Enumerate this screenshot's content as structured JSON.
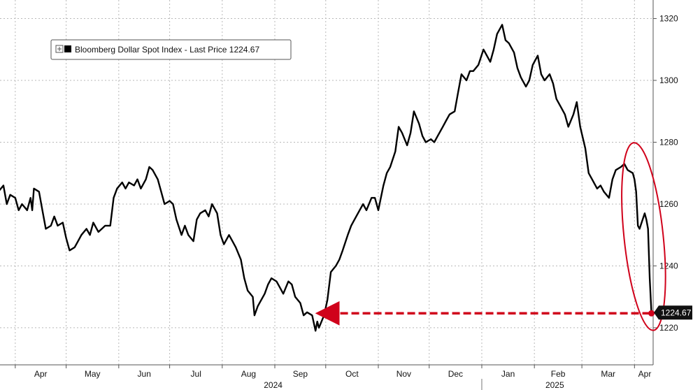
{
  "chart_data": {
    "type": "line",
    "legend": {
      "label": "Bloomberg Dollar Spot Index - Last Price 1224.67",
      "placement": "top-left"
    },
    "last_price_label": "1224.67",
    "colors": {
      "series": "#000000",
      "annotation": "#d0021b",
      "grid": "#b9b9b9"
    },
    "grid": true,
    "y_axis_side": "right",
    "ylim": [
      1208,
      1326
    ],
    "y_ticks": [
      {
        "value": 1220,
        "label": "1220"
      },
      {
        "value": 1240,
        "label": "1240"
      },
      {
        "value": 1260,
        "label": "1260"
      },
      {
        "value": 1280,
        "label": "1280"
      },
      {
        "value": 1300,
        "label": "1300"
      },
      {
        "value": 1320,
        "label": "1320"
      }
    ],
    "xlim": [
      "2024-03-23",
      "2025-04-12"
    ],
    "x_ticks": [
      {
        "date": "2024-04-01",
        "label": "Apr"
      },
      {
        "date": "2024-05-01",
        "label": "May"
      },
      {
        "date": "2024-06-01",
        "label": "Jun"
      },
      {
        "date": "2024-07-01",
        "label": "Jul"
      },
      {
        "date": "2024-08-01",
        "label": "Aug"
      },
      {
        "date": "2024-09-01",
        "label": "Sep"
      },
      {
        "date": "2024-10-01",
        "label": "Oct"
      },
      {
        "date": "2024-11-01",
        "label": "Nov"
      },
      {
        "date": "2024-12-01",
        "label": "Dec"
      },
      {
        "date": "2025-01-01",
        "label": "Jan"
      },
      {
        "date": "2025-02-01",
        "label": "Feb"
      },
      {
        "date": "2025-03-01",
        "label": "Mar"
      },
      {
        "date": "2025-04-01",
        "label": "Apr"
      }
    ],
    "year_labels": [
      {
        "date": "2024-08-31",
        "label": "2024"
      },
      {
        "date": "2025-02-13",
        "label": "2025"
      }
    ],
    "year_divider_date": "2025-01-01",
    "series": [
      {
        "name": "Bloomberg Dollar Spot Index",
        "points": [
          [
            "2024-03-22",
            1264
          ],
          [
            "2024-03-25",
            1266
          ],
          [
            "2024-03-27",
            1260
          ],
          [
            "2024-03-29",
            1263
          ],
          [
            "2024-04-01",
            1262
          ],
          [
            "2024-04-03",
            1258
          ],
          [
            "2024-04-05",
            1260
          ],
          [
            "2024-04-08",
            1258
          ],
          [
            "2024-04-10",
            1262
          ],
          [
            "2024-04-11",
            1258
          ],
          [
            "2024-04-12",
            1265
          ],
          [
            "2024-04-15",
            1264
          ],
          [
            "2024-04-17",
            1258
          ],
          [
            "2024-04-19",
            1252
          ],
          [
            "2024-04-22",
            1253
          ],
          [
            "2024-04-24",
            1256
          ],
          [
            "2024-04-26",
            1253
          ],
          [
            "2024-04-29",
            1254
          ],
          [
            "2024-05-01",
            1249
          ],
          [
            "2024-05-03",
            1245
          ],
          [
            "2024-05-06",
            1246
          ],
          [
            "2024-05-08",
            1248
          ],
          [
            "2024-05-10",
            1250
          ],
          [
            "2024-05-13",
            1252
          ],
          [
            "2024-05-15",
            1250
          ],
          [
            "2024-05-17",
            1254
          ],
          [
            "2024-05-20",
            1251
          ],
          [
            "2024-05-22",
            1252
          ],
          [
            "2024-05-24",
            1253
          ],
          [
            "2024-05-27",
            1253
          ],
          [
            "2024-05-29",
            1262
          ],
          [
            "2024-05-31",
            1265
          ],
          [
            "2024-06-03",
            1267
          ],
          [
            "2024-06-05",
            1265
          ],
          [
            "2024-06-07",
            1267
          ],
          [
            "2024-06-10",
            1266
          ],
          [
            "2024-06-12",
            1268
          ],
          [
            "2024-06-14",
            1265
          ],
          [
            "2024-06-17",
            1268
          ],
          [
            "2024-06-19",
            1272
          ],
          [
            "2024-06-21",
            1271
          ],
          [
            "2024-06-24",
            1268
          ],
          [
            "2024-06-26",
            1264
          ],
          [
            "2024-06-28",
            1260
          ],
          [
            "2024-07-01",
            1261
          ],
          [
            "2024-07-03",
            1260
          ],
          [
            "2024-07-05",
            1255
          ],
          [
            "2024-07-08",
            1250
          ],
          [
            "2024-07-10",
            1253
          ],
          [
            "2024-07-12",
            1250
          ],
          [
            "2024-07-15",
            1248
          ],
          [
            "2024-07-17",
            1255
          ],
          [
            "2024-07-19",
            1257
          ],
          [
            "2024-07-22",
            1258
          ],
          [
            "2024-07-24",
            1256
          ],
          [
            "2024-07-26",
            1260
          ],
          [
            "2024-07-29",
            1257
          ],
          [
            "2024-07-31",
            1250
          ],
          [
            "2024-08-02",
            1247
          ],
          [
            "2024-08-05",
            1250
          ],
          [
            "2024-08-07",
            1248
          ],
          [
            "2024-08-09",
            1246
          ],
          [
            "2024-08-12",
            1242
          ],
          [
            "2024-08-14",
            1236
          ],
          [
            "2024-08-16",
            1232
          ],
          [
            "2024-08-19",
            1230
          ],
          [
            "2024-08-20",
            1224
          ],
          [
            "2024-08-22",
            1227
          ],
          [
            "2024-08-26",
            1231
          ],
          [
            "2024-08-28",
            1234
          ],
          [
            "2024-08-30",
            1236
          ],
          [
            "2024-09-02",
            1235
          ],
          [
            "2024-09-04",
            1233
          ],
          [
            "2024-09-06",
            1231
          ],
          [
            "2024-09-09",
            1235
          ],
          [
            "2024-09-11",
            1234
          ],
          [
            "2024-09-13",
            1230
          ],
          [
            "2024-09-16",
            1228
          ],
          [
            "2024-09-18",
            1224
          ],
          [
            "2024-09-20",
            1225
          ],
          [
            "2024-09-23",
            1224
          ],
          [
            "2024-09-25",
            1219
          ],
          [
            "2024-09-26",
            1222
          ],
          [
            "2024-09-27",
            1220
          ],
          [
            "2024-09-30",
            1224
          ],
          [
            "2024-10-02",
            1229
          ],
          [
            "2024-10-04",
            1238
          ],
          [
            "2024-10-07",
            1240
          ],
          [
            "2024-10-09",
            1242
          ],
          [
            "2024-10-11",
            1245
          ],
          [
            "2024-10-14",
            1250
          ],
          [
            "2024-10-16",
            1253
          ],
          [
            "2024-10-18",
            1255
          ],
          [
            "2024-10-21",
            1258
          ],
          [
            "2024-10-23",
            1260
          ],
          [
            "2024-10-25",
            1258
          ],
          [
            "2024-10-28",
            1262
          ],
          [
            "2024-10-30",
            1262
          ],
          [
            "2024-11-01",
            1258
          ],
          [
            "2024-11-04",
            1266
          ],
          [
            "2024-11-06",
            1270
          ],
          [
            "2024-11-08",
            1272
          ],
          [
            "2024-11-11",
            1277
          ],
          [
            "2024-11-13",
            1285
          ],
          [
            "2024-11-15",
            1283
          ],
          [
            "2024-11-18",
            1279
          ],
          [
            "2024-11-20",
            1283
          ],
          [
            "2024-11-22",
            1290
          ],
          [
            "2024-11-25",
            1286
          ],
          [
            "2024-11-27",
            1282
          ],
          [
            "2024-11-29",
            1280
          ],
          [
            "2024-12-02",
            1281
          ],
          [
            "2024-12-04",
            1280
          ],
          [
            "2024-12-06",
            1282
          ],
          [
            "2024-12-09",
            1285
          ],
          [
            "2024-12-11",
            1287
          ],
          [
            "2024-12-13",
            1289
          ],
          [
            "2024-12-16",
            1290
          ],
          [
            "2024-12-18",
            1296
          ],
          [
            "2024-12-20",
            1302
          ],
          [
            "2024-12-23",
            1300
          ],
          [
            "2024-12-25",
            1303
          ],
          [
            "2024-12-27",
            1303
          ],
          [
            "2024-12-30",
            1305
          ],
          [
            "2025-01-02",
            1310
          ],
          [
            "2025-01-06",
            1306
          ],
          [
            "2025-01-08",
            1310
          ],
          [
            "2025-01-10",
            1315
          ],
          [
            "2025-01-13",
            1318
          ],
          [
            "2025-01-15",
            1313
          ],
          [
            "2025-01-17",
            1312
          ],
          [
            "2025-01-20",
            1309
          ],
          [
            "2025-01-22",
            1304
          ],
          [
            "2025-01-24",
            1301
          ],
          [
            "2025-01-27",
            1298
          ],
          [
            "2025-01-29",
            1300
          ],
          [
            "2025-01-31",
            1305
          ],
          [
            "2025-02-03",
            1308
          ],
          [
            "2025-02-05",
            1302
          ],
          [
            "2025-02-07",
            1300
          ],
          [
            "2025-02-10",
            1302
          ],
          [
            "2025-02-12",
            1299
          ],
          [
            "2025-02-14",
            1294
          ],
          [
            "2025-02-17",
            1291
          ],
          [
            "2025-02-19",
            1289
          ],
          [
            "2025-02-21",
            1285
          ],
          [
            "2025-02-24",
            1289
          ],
          [
            "2025-02-26",
            1293
          ],
          [
            "2025-02-28",
            1285
          ],
          [
            "2025-03-03",
            1278
          ],
          [
            "2025-03-05",
            1270
          ],
          [
            "2025-03-07",
            1268
          ],
          [
            "2025-03-10",
            1265
          ],
          [
            "2025-03-12",
            1266
          ],
          [
            "2025-03-14",
            1264
          ],
          [
            "2025-03-17",
            1262
          ],
          [
            "2025-03-19",
            1268
          ],
          [
            "2025-03-21",
            1271
          ],
          [
            "2025-03-24",
            1272
          ],
          [
            "2025-03-26",
            1273
          ],
          [
            "2025-03-28",
            1271
          ],
          [
            "2025-03-31",
            1270
          ],
          [
            "2025-04-01",
            1268
          ],
          [
            "2025-04-02",
            1264
          ],
          [
            "2025-04-03",
            1253
          ],
          [
            "2025-04-04",
            1252
          ],
          [
            "2025-04-07",
            1257
          ],
          [
            "2025-04-08",
            1255
          ],
          [
            "2025-04-09",
            1252
          ],
          [
            "2025-04-10",
            1236
          ],
          [
            "2025-04-11",
            1224.67
          ]
        ]
      }
    ]
  }
}
